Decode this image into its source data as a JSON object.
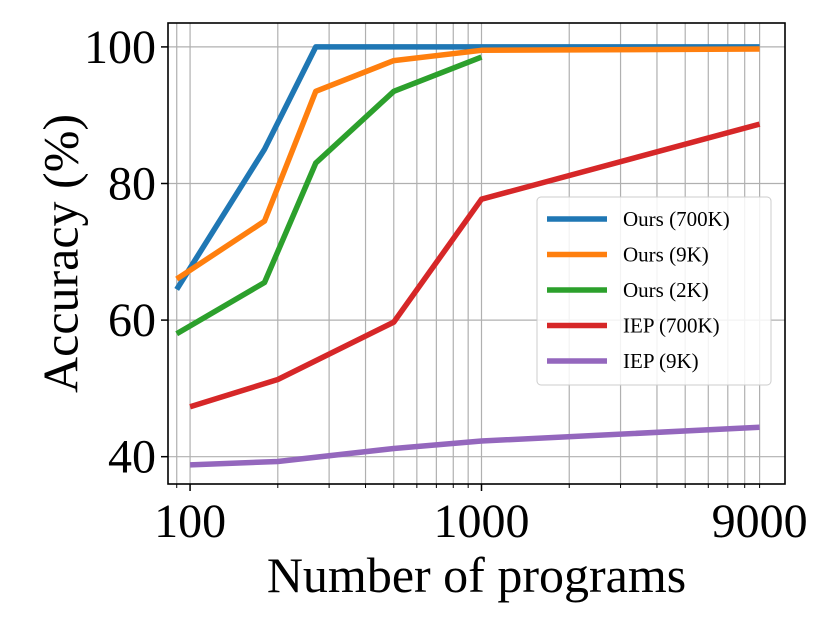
{
  "chart_data": {
    "type": "line",
    "title": "",
    "xlabel": "Number of programs",
    "ylabel": "Accuracy (%)",
    "xscale": "log",
    "xlim": [
      84,
      11000
    ],
    "ylim": [
      36,
      103.5
    ],
    "xticks": [
      {
        "value": 100,
        "label": "100"
      },
      {
        "value": 1000,
        "label": "1000"
      },
      {
        "value": 9000,
        "label": "9000"
      }
    ],
    "yticks": [
      {
        "value": 40,
        "label": "40"
      },
      {
        "value": 60,
        "label": "60"
      },
      {
        "value": 80,
        "label": "80"
      },
      {
        "value": 100,
        "label": "100"
      }
    ],
    "grid": true,
    "legend_position": "center-right",
    "series": [
      {
        "name": "Ours (700K)",
        "color": "#1f77b4",
        "points": [
          [
            90,
            64.5
          ],
          [
            180,
            85
          ],
          [
            270,
            100
          ],
          [
            500,
            100
          ],
          [
            1000,
            100
          ],
          [
            9000,
            100
          ]
        ]
      },
      {
        "name": "Ours (9K)",
        "color": "#ff7f0e",
        "points": [
          [
            90,
            66
          ],
          [
            180,
            74.5
          ],
          [
            270,
            93.5
          ],
          [
            500,
            98
          ],
          [
            1000,
            99.5
          ],
          [
            9000,
            99.7
          ]
        ]
      },
      {
        "name": "Ours (2K)",
        "color": "#2ca02c",
        "points": [
          [
            90,
            58
          ],
          [
            180,
            65.5
          ],
          [
            270,
            83
          ],
          [
            500,
            93.5
          ],
          [
            1000,
            98.5
          ]
        ]
      },
      {
        "name": "IEP (700K)",
        "color": "#d62728",
        "points": [
          [
            100,
            47.3
          ],
          [
            200,
            51.3
          ],
          [
            500,
            59.7
          ],
          [
            1000,
            77.7
          ],
          [
            9000,
            88.7
          ]
        ]
      },
      {
        "name": "IEP (9K)",
        "color": "#9467bd",
        "points": [
          [
            100,
            38.8
          ],
          [
            200,
            39.3
          ],
          [
            500,
            41.2
          ],
          [
            1000,
            42.3
          ],
          [
            9000,
            44.3
          ]
        ]
      }
    ]
  }
}
